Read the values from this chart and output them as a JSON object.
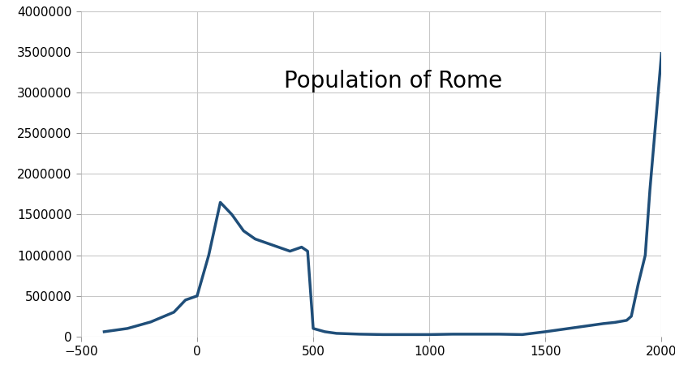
{
  "title": "Population of Rome",
  "title_fontsize": 20,
  "title_fontweight": "normal",
  "title_font_family": "DejaVu Sans",
  "line_color": "#1F4E79",
  "line_width": 2.5,
  "background_color": "#FFFFFF",
  "grid_color": "#C8C8C8",
  "xlim": [
    -500,
    2000
  ],
  "ylim": [
    0,
    4000000
  ],
  "xticks": [
    -500,
    0,
    500,
    1000,
    1500,
    2000
  ],
  "yticks": [
    0,
    500000,
    1000000,
    1500000,
    2000000,
    2500000,
    3000000,
    3500000,
    4000000
  ],
  "tick_labelsize": 11,
  "x": [
    -400,
    -300,
    -200,
    -100,
    -50,
    0,
    50,
    100,
    150,
    200,
    250,
    300,
    350,
    400,
    450,
    476,
    500,
    550,
    600,
    700,
    800,
    900,
    1000,
    1100,
    1200,
    1300,
    1400,
    1500,
    1550,
    1600,
    1650,
    1700,
    1750,
    1800,
    1850,
    1870,
    1900,
    1930,
    1950,
    1980,
    2000
  ],
  "y": [
    60000,
    100000,
    180000,
    300000,
    450000,
    500000,
    1000000,
    1650000,
    1500000,
    1300000,
    1200000,
    1150000,
    1100000,
    1050000,
    1100000,
    1050000,
    100000,
    60000,
    40000,
    30000,
    25000,
    25000,
    25000,
    30000,
    30000,
    30000,
    25000,
    60000,
    80000,
    100000,
    120000,
    140000,
    160000,
    175000,
    200000,
    250000,
    650000,
    1000000,
    1800000,
    2800000,
    3480000
  ]
}
